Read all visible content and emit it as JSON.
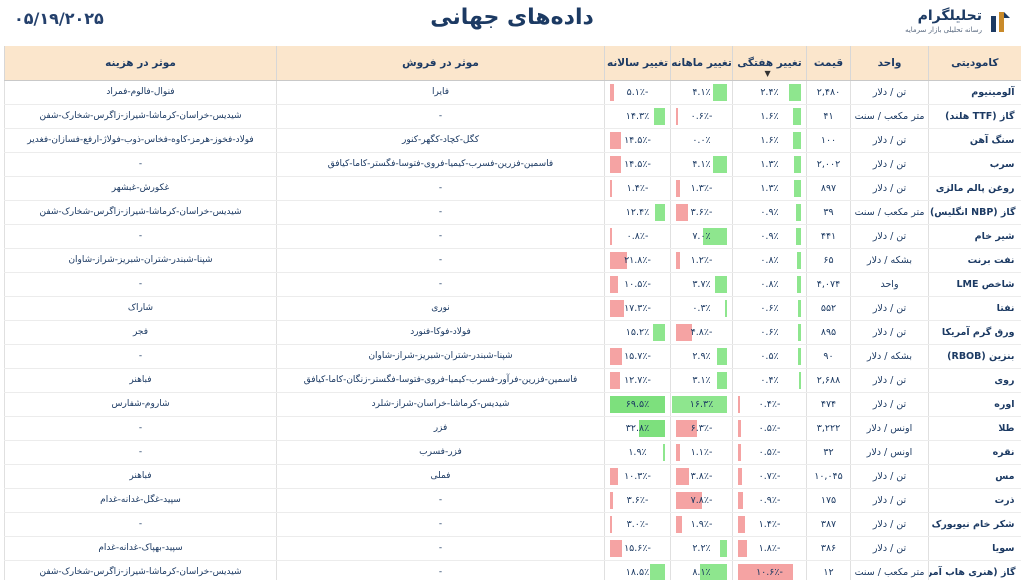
{
  "header": {
    "date": "۰۵/۱۹/۲۰۲۵",
    "title": "داده‌های جهانی",
    "logo_name": "تحلیلگرام",
    "logo_sub": "رسانه تحلیلی بازار سرمایه"
  },
  "columns": {
    "commodity": "کامودیتی",
    "unit": "واحد",
    "price": "قیمت",
    "weekly": "تغییر هفتگی",
    "monthly": "تغییر ماهانه",
    "yearly": "تغییر سالانه",
    "sales": "موثر در فروش",
    "cost": "موثر در هزینه"
  },
  "colors": {
    "positive": "#8ee68e",
    "negative": "#f5a3a3",
    "header_bg": "#fbe6cc",
    "text": "#1c3a63"
  },
  "rows": [
    {
      "name": "آلومینیوم",
      "unit": "تن / دلار",
      "price": "۲,۴۸۰",
      "w": "۲.۴٪",
      "m": "۴.۱٪",
      "y": "-۵.۱٪",
      "wv": 2.4,
      "mv": 4.1,
      "yv": -5.1,
      "sales": "فایرا",
      "cost": "فنوال-فالوم-فمراد"
    },
    {
      "name": "گاز (TTF هلند)",
      "unit": "متر مکعب / سنت",
      "price": "۴۱",
      "w": "۱.۶٪",
      "m": "-۰.۶٪",
      "y": "۱۴.۳٪",
      "wv": 1.6,
      "mv": -0.6,
      "yv": 14.3,
      "sales": "-",
      "cost": "شیدیس-خراسان-کرماشا-شیراز-زاگرس-شخارک-شفن"
    },
    {
      "name": "سنگ آهن",
      "unit": "تن / دلار",
      "price": "۱۰۰",
      "w": "۱.۶٪",
      "m": "۰.۰٪",
      "y": "-۱۴.۵٪",
      "wv": 1.6,
      "mv": 0.0,
      "yv": -14.5,
      "sales": "کگل-کچاد-کگهر-کنور",
      "cost": "فولاد-فخوز-هرمز-کاوه-فخاس-ذوب-فولاژ-ارفع-فسازان-فغدیر"
    },
    {
      "name": "سرب",
      "unit": "تن / دلار",
      "price": "۲,۰۰۲",
      "w": "۱.۳٪",
      "m": "۴.۱٪",
      "y": "-۱۴.۵٪",
      "wv": 1.3,
      "mv": 4.1,
      "yv": -14.5,
      "sales": "فاسمین-فزرین-فسرب-کیمیا-فروی-فتوسا-فگستر-کاما-کیافق",
      "cost": "-"
    },
    {
      "name": "روغن پالم مالزی",
      "unit": "تن / دلار",
      "price": "۸۹۷",
      "w": "۱.۳٪",
      "m": "-۱.۳٪",
      "y": "-۱.۴٪",
      "wv": 1.3,
      "mv": -1.3,
      "yv": -1.4,
      "sales": "-",
      "cost": "غکورش-غبشهر"
    },
    {
      "name": "گاز (NBP انگلیس)",
      "unit": "متر مکعب / سنت",
      "price": "۳۹",
      "w": "۰.۹٪",
      "m": "-۳.۶٪",
      "y": "۱۲.۴٪",
      "wv": 0.9,
      "mv": -3.6,
      "yv": 12.4,
      "sales": "-",
      "cost": "شیدیس-خراسان-کرماشا-شیراز-زاگرس-شخارک-شفن"
    },
    {
      "name": "شیر خام",
      "unit": "تن / دلار",
      "price": "۴۴۱",
      "w": "۰.۹٪",
      "m": "۷.۰٪",
      "y": "-۰.۸٪",
      "wv": 0.9,
      "mv": 7.0,
      "yv": -0.8,
      "sales": "-",
      "cost": "-"
    },
    {
      "name": "نفت برنت",
      "unit": "بشکه / دلار",
      "price": "۶۵",
      "w": "۰.۸٪",
      "m": "-۱.۲٪",
      "y": "-۲۱.۸٪",
      "wv": 0.8,
      "mv": -1.2,
      "yv": -21.8,
      "sales": "-",
      "cost": "شپنا-شبندر-شتران-شبریز-شراز-شاوان"
    },
    {
      "name": "شاخص LME",
      "unit": "واحد",
      "price": "۴,۰۷۴",
      "w": "۰.۸٪",
      "m": "۳.۷٪",
      "y": "-۱۰.۵٪",
      "wv": 0.8,
      "mv": 3.7,
      "yv": -10.5,
      "sales": "-",
      "cost": "-"
    },
    {
      "name": "نفتا",
      "unit": "تن / دلار",
      "price": "۵۵۲",
      "w": "۰.۶٪",
      "m": "۰.۳٪",
      "y": "-۱۷.۳٪",
      "wv": 0.6,
      "mv": 0.3,
      "yv": -17.3,
      "sales": "نوری",
      "cost": "شاراک"
    },
    {
      "name": "ورق گرم آمریکا",
      "unit": "تن / دلار",
      "price": "۸۹۵",
      "w": "۰.۶٪",
      "m": "-۴.۸٪",
      "y": "۱۵.۲٪",
      "wv": 0.6,
      "mv": -4.8,
      "yv": 15.2,
      "sales": "فولاد-فوکا-فنورد",
      "cost": "فجر"
    },
    {
      "name": "بنزین (RBOB)",
      "unit": "بشکه / دلار",
      "price": "۹۰",
      "w": "۰.۵٪",
      "m": "۲.۹٪",
      "y": "-۱۵.۷٪",
      "wv": 0.5,
      "mv": 2.9,
      "yv": -15.7,
      "sales": "شپنا-شبندر-شتران-شبریز-شراز-شاوان",
      "cost": "-"
    },
    {
      "name": "روی",
      "unit": "تن / دلار",
      "price": "۲,۶۸۸",
      "w": "۰.۴٪",
      "m": "۳.۱٪",
      "y": "-۱۲.۷٪",
      "wv": 0.4,
      "mv": 3.1,
      "yv": -12.7,
      "sales": "فاسمین-فزرین-فرآور-فسرب-کیمیا-فروی-فتوسا-فگستر-زنگان-کاما-کیافق",
      "cost": "فباهنر"
    },
    {
      "name": "اوره",
      "unit": "تن / دلار",
      "price": "۴۷۴",
      "w": "-۰.۴٪",
      "m": "۱۶.۳٪",
      "y": "۶۹.۵٪",
      "wv": -0.4,
      "mv": 16.3,
      "yv": 69.5,
      "sales": "شیدیس-کرماشا-خراسان-شراز-شلرد",
      "cost": "شاروم-شفارس"
    },
    {
      "name": "طلا",
      "unit": "اونس / دلار",
      "price": "۳,۲۲۲",
      "w": "-۰.۵٪",
      "m": "-۶.۳٪",
      "y": "۳۲.۸٪",
      "wv": -0.5,
      "mv": -6.3,
      "yv": 32.8,
      "sales": "فزر",
      "cost": "-"
    },
    {
      "name": "نقره",
      "unit": "اونس / دلار",
      "price": "۳۲",
      "w": "-۰.۵٪",
      "m": "-۱.۱٪",
      "y": "۱.۹٪",
      "wv": -0.5,
      "mv": -1.1,
      "yv": 1.9,
      "sales": "فزر-فسرب",
      "cost": "-"
    },
    {
      "name": "مس",
      "unit": "تن / دلار",
      "price": "۱۰,۰۴۵",
      "w": "-۰.۷٪",
      "m": "-۳.۸٪",
      "y": "-۱۰.۳٪",
      "wv": -0.7,
      "mv": -3.8,
      "yv": -10.3,
      "sales": "فملی",
      "cost": "فباهنر"
    },
    {
      "name": "ذرت",
      "unit": "تن / دلار",
      "price": "۱۷۵",
      "w": "-۰.۹٪",
      "m": "-۷.۸٪",
      "y": "-۳.۶٪",
      "wv": -0.9,
      "mv": -7.8,
      "yv": -3.6,
      "sales": "-",
      "cost": "سپید-غگل-غدانه-غدام"
    },
    {
      "name": "شکر خام نیویورک",
      "unit": "تن / دلار",
      "price": "۳۸۷",
      "w": "-۱.۴٪",
      "m": "-۱.۹٪",
      "y": "-۳.۰٪",
      "wv": -1.4,
      "mv": -1.9,
      "yv": -3.0,
      "sales": "-",
      "cost": "-"
    },
    {
      "name": "سویا",
      "unit": "تن / دلار",
      "price": "۳۸۶",
      "w": "-۱.۸٪",
      "m": "۲.۲٪",
      "y": "-۱۵.۶٪",
      "wv": -1.8,
      "mv": 2.2,
      "yv": -15.6,
      "sales": "-",
      "cost": "سپید-بهپاک-غدانه-غدام"
    },
    {
      "name": "گاز (هنری هاب آمریکا)",
      "unit": "متر مکعب / سنت",
      "price": "۱۲",
      "w": "-۱۰.۶٪",
      "m": "۸.۱٪",
      "y": "۱۸.۵٪",
      "wv": -10.6,
      "mv": 8.1,
      "yv": 18.5,
      "sales": "-",
      "cost": "شیدیس-خراسان-کرماشا-شیراز-زاگرس-شخارک-شفن"
    }
  ]
}
